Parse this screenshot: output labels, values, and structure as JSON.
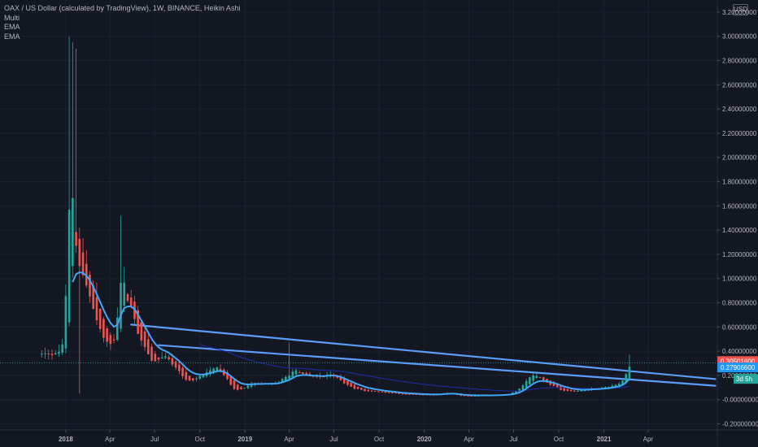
{
  "legend": {
    "symbol": "OAX / US Dollar (calculated by TradingView), 1W, BINANCE, Heikin Ashi",
    "ind1": "Multi",
    "ind2": "EMA",
    "ind3": "EMA"
  },
  "currency_button": "USD",
  "colors": {
    "background": "#131722",
    "up": "#26a69a",
    "down": "#ef5350",
    "trendline": "#5b9cf6",
    "ema": "#42a5f5",
    "ema_slow": "#1c2ca8",
    "price_label_red": "#ef5350",
    "price_label_blue": "#2196f3",
    "countdown": "#26a69a"
  },
  "price_labels": {
    "last": "0.30501600",
    "ema": "0.27906600",
    "countdown": "3d 5h"
  },
  "chart_data": {
    "type": "candlestick",
    "y_ticks": [
      "3.20000000",
      "3.00000000",
      "2.80000000",
      "2.60000000",
      "2.40000000",
      "2.20000000",
      "2.00000000",
      "1.80000000",
      "1.60000000",
      "1.40000000",
      "1.20000000",
      "1.00000000",
      "0.80000000",
      "0.60000000",
      "0.40000000",
      "0.20000000",
      "-0.00000000",
      "-0.20000000"
    ],
    "ylim": [
      -0.25,
      3.3
    ],
    "x_ticks": [
      "2018",
      "Apr",
      "Jul",
      "Oct",
      "2019",
      "Apr",
      "Jul",
      "Oct",
      "2020",
      "Apr",
      "Jul",
      "Oct",
      "2021",
      "Apr"
    ],
    "x_tick_dates": [
      "2018-01-01",
      "2018-04-01",
      "2018-07-01",
      "2018-10-01",
      "2019-01-01",
      "2019-04-01",
      "2019-07-01",
      "2019-10-01",
      "2020-01-01",
      "2020-04-01",
      "2020-07-01",
      "2020-10-01",
      "2021-01-01",
      "2021-04-01"
    ],
    "x_range": [
      "2017-08-20",
      "2021-08-20"
    ],
    "last_price": 0.305016,
    "ema_value": 0.279066,
    "weekly_close_knots": [
      [
        "2017-11-13",
        0.38
      ],
      [
        "2017-12-18",
        0.4
      ],
      [
        "2017-12-25",
        0.55
      ],
      [
        "2018-01-01",
        1.1
      ],
      [
        "2018-01-08",
        1.9
      ],
      [
        "2018-01-15",
        1.4
      ],
      [
        "2018-01-22",
        1.2
      ],
      [
        "2018-01-29",
        1.0
      ],
      [
        "2018-02-12",
        0.95
      ],
      [
        "2018-02-26",
        0.7
      ],
      [
        "2018-03-12",
        0.55
      ],
      [
        "2018-03-26",
        0.45
      ],
      [
        "2018-04-09",
        0.55
      ],
      [
        "2018-04-23",
        1.0
      ],
      [
        "2018-05-07",
        0.8
      ],
      [
        "2018-05-21",
        0.6
      ],
      [
        "2018-06-04",
        0.45
      ],
      [
        "2018-06-18",
        0.35
      ],
      [
        "2018-07-02",
        0.3
      ],
      [
        "2018-07-16",
        0.38
      ],
      [
        "2018-07-30",
        0.32
      ],
      [
        "2018-08-13",
        0.25
      ],
      [
        "2018-08-27",
        0.18
      ],
      [
        "2018-09-10",
        0.15
      ],
      [
        "2018-09-24",
        0.18
      ],
      [
        "2018-10-08",
        0.22
      ],
      [
        "2018-10-22",
        0.25
      ],
      [
        "2018-11-05",
        0.26
      ],
      [
        "2018-11-19",
        0.2
      ],
      [
        "2018-12-03",
        0.1
      ],
      [
        "2018-12-17",
        0.08
      ],
      [
        "2018-12-31",
        0.1
      ],
      [
        "2019-01-14",
        0.14
      ],
      [
        "2019-01-28",
        0.13
      ],
      [
        "2019-02-11",
        0.13
      ],
      [
        "2019-03-04",
        0.14
      ],
      [
        "2019-03-25",
        0.2
      ],
      [
        "2019-04-08",
        0.24
      ],
      [
        "2019-04-22",
        0.2
      ],
      [
        "2019-05-13",
        0.18
      ],
      [
        "2019-06-03",
        0.2
      ],
      [
        "2019-06-24",
        0.22
      ],
      [
        "2019-07-15",
        0.14
      ],
      [
        "2019-08-05",
        0.1
      ],
      [
        "2019-09-02",
        0.07
      ],
      [
        "2019-10-07",
        0.06
      ],
      [
        "2019-11-11",
        0.05
      ],
      [
        "2019-12-16",
        0.04
      ],
      [
        "2020-01-20",
        0.045
      ],
      [
        "2020-02-24",
        0.055
      ],
      [
        "2020-03-16",
        0.03
      ],
      [
        "2020-04-20",
        0.035
      ],
      [
        "2020-05-25",
        0.04
      ],
      [
        "2020-06-22",
        0.05
      ],
      [
        "2020-07-13",
        0.1
      ],
      [
        "2020-08-03",
        0.2
      ],
      [
        "2020-08-24",
        0.17
      ],
      [
        "2020-09-14",
        0.12
      ],
      [
        "2020-10-05",
        0.08
      ],
      [
        "2020-11-02",
        0.07
      ],
      [
        "2020-12-07",
        0.09
      ],
      [
        "2021-01-04",
        0.1
      ],
      [
        "2021-01-25",
        0.12
      ],
      [
        "2021-02-08",
        0.16
      ],
      [
        "2021-02-22",
        0.3
      ]
    ],
    "spikes": [
      [
        "2018-01-08",
        3.0
      ],
      [
        "2018-01-15",
        2.95
      ],
      [
        "2018-01-22",
        2.9
      ],
      [
        "2018-04-23",
        1.52
      ],
      [
        "2018-01-29",
        0.05
      ],
      [
        "2019-04-01",
        0.47
      ],
      [
        "2021-02-22",
        0.37
      ]
    ],
    "trendlines": [
      [
        [
          "2018-05-14",
          0.62
        ],
        [
          "2021-08-16",
          0.17
        ]
      ],
      [
        [
          "2018-07-09",
          0.45
        ],
        [
          "2021-08-16",
          0.115
        ]
      ]
    ]
  }
}
